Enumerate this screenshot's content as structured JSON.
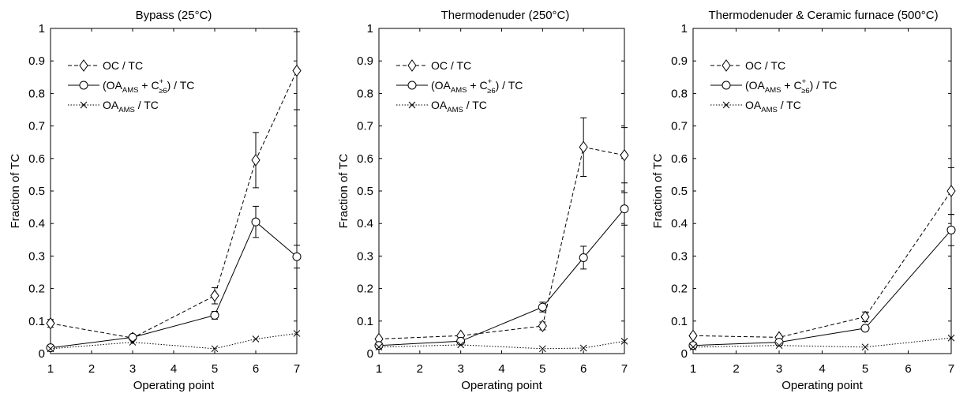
{
  "chart_data": [
    {
      "type": "line",
      "title": "Bypass (25°C)",
      "xlabel": "Operating point",
      "ylabel": "Fraction of TC",
      "xlim": [
        1,
        7
      ],
      "ylim": [
        0,
        1
      ],
      "xticks": [
        1,
        2,
        3,
        4,
        5,
        6,
        7
      ],
      "yticks": [
        0,
        0.1,
        0.2,
        0.3,
        0.4,
        0.5,
        0.6,
        0.7,
        0.8,
        0.9,
        1
      ],
      "x": [
        1,
        3,
        5,
        6,
        7
      ],
      "grid": false,
      "legend_position": "top-left",
      "series": [
        {
          "name": "OC / TC",
          "style": "dashed",
          "marker": "diamond",
          "values": [
            0.093,
            0.048,
            0.178,
            0.595,
            0.87
          ],
          "error": [
            0.012,
            0.004,
            0.025,
            0.085,
            0.12
          ]
        },
        {
          "name": "(OA_AMS + C+≥6) / TC",
          "style": "solid",
          "marker": "circle",
          "values": [
            0.018,
            0.05,
            0.118,
            0.405,
            0.298
          ],
          "error": [
            0.003,
            0.005,
            0.012,
            0.048,
            0.035
          ]
        },
        {
          "name": "OA_AMS / TC",
          "style": "dotted",
          "marker": "x",
          "values": [
            0.015,
            0.035,
            0.015,
            0.045,
            0.062
          ],
          "error": [
            0,
            0,
            0,
            0,
            0
          ]
        }
      ]
    },
    {
      "type": "line",
      "title": "Thermodenuder (250°C)",
      "xlabel": "Operating point",
      "ylabel": "Fraction of TC",
      "xlim": [
        1,
        7
      ],
      "ylim": [
        0,
        1
      ],
      "xticks": [
        1,
        2,
        3,
        4,
        5,
        6,
        7
      ],
      "yticks": [
        0,
        0.1,
        0.2,
        0.3,
        0.4,
        0.5,
        0.6,
        0.7,
        0.8,
        0.9,
        1
      ],
      "x": [
        1,
        3,
        5,
        6,
        7
      ],
      "grid": false,
      "legend_position": "top-left",
      "series": [
        {
          "name": "OC / TC",
          "style": "dashed",
          "marker": "diamond",
          "values": [
            0.045,
            0.055,
            0.085,
            0.635,
            0.61
          ],
          "error": [
            0.005,
            0.005,
            0.012,
            0.09,
            0.085
          ]
        },
        {
          "name": "(OA_AMS + C+≥6) / TC",
          "style": "solid",
          "marker": "circle",
          "values": [
            0.025,
            0.038,
            0.143,
            0.295,
            0.445
          ],
          "error": [
            0.004,
            0.006,
            0.015,
            0.035,
            0.05
          ]
        },
        {
          "name": "OA_AMS / TC",
          "style": "dotted",
          "marker": "x",
          "values": [
            0.02,
            0.027,
            0.015,
            0.017,
            0.038
          ],
          "error": [
            0,
            0,
            0,
            0,
            0
          ]
        }
      ]
    },
    {
      "type": "line",
      "title": "Thermodenuder & Ceramic furnace (500°C)",
      "xlabel": "Operating point",
      "ylabel": "Fraction of TC",
      "xlim": [
        1,
        7
      ],
      "ylim": [
        0,
        1
      ],
      "xticks": [
        1,
        2,
        3,
        4,
        5,
        6,
        7
      ],
      "yticks": [
        0,
        0.1,
        0.2,
        0.3,
        0.4,
        0.5,
        0.6,
        0.7,
        0.8,
        0.9,
        1
      ],
      "x": [
        1,
        3,
        5,
        6,
        7
      ],
      "grid": false,
      "legend_position": "top-left",
      "series": [
        {
          "name": "OC / TC",
          "style": "dashed",
          "marker": "diamond",
          "values": [
            0.055,
            0.05,
            0.113,
            null,
            0.5
          ],
          "error": [
            0.006,
            0.005,
            0.015,
            null,
            0.072
          ]
        },
        {
          "name": "(OA_AMS + C+≥6) / TC",
          "style": "solid",
          "marker": "circle",
          "values": [
            0.025,
            0.035,
            0.078,
            null,
            0.38
          ],
          "error": [
            0.004,
            0.005,
            0.008,
            null,
            0.048
          ]
        },
        {
          "name": "OA_AMS / TC",
          "style": "dotted",
          "marker": "x",
          "values": [
            0.02,
            0.025,
            0.02,
            null,
            0.048
          ],
          "error": [
            0,
            0,
            0,
            0,
            0
          ]
        }
      ]
    }
  ],
  "legend_parts": {
    "oc": "OC / TC",
    "open": "(OA",
    "ams": "AMS",
    "plus": " + C",
    "sup": "+",
    "geq": "≥6",
    "close": ") / TC",
    "oa_pre": "OA",
    "oa_post": " / TC"
  }
}
